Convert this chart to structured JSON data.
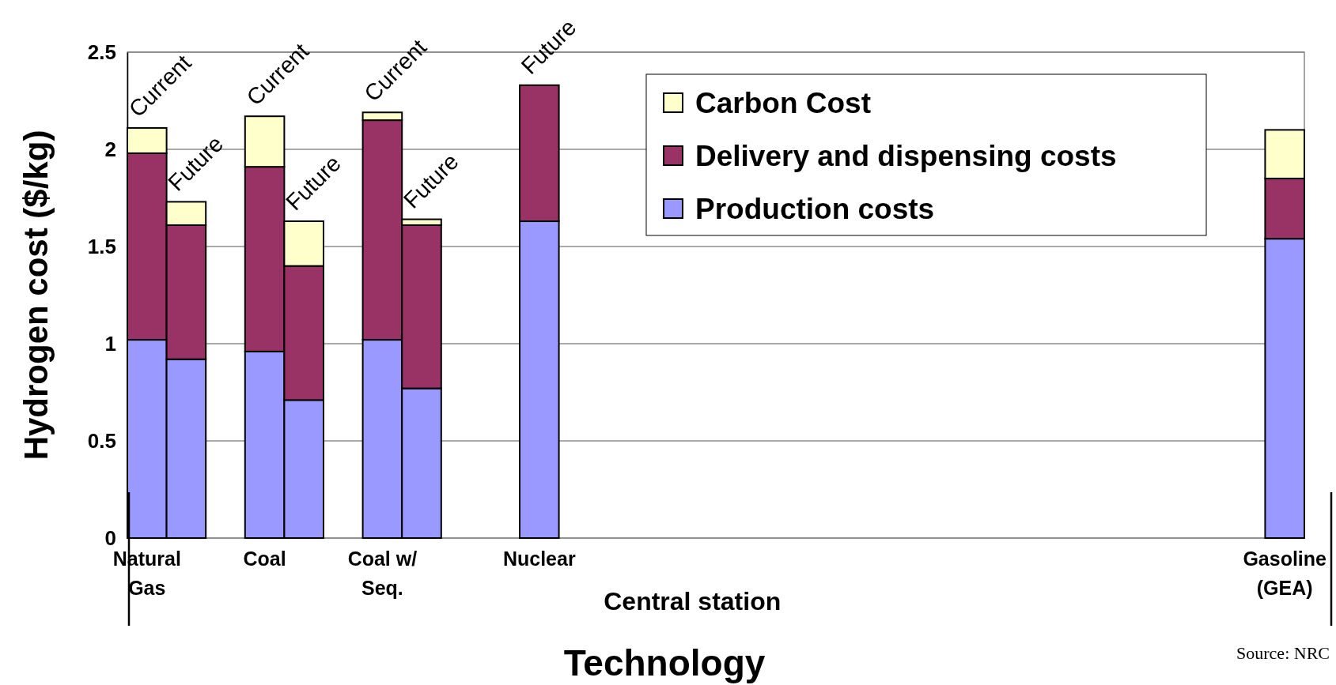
{
  "chart_data": {
    "type": "bar",
    "stacked": true,
    "categories": [
      "Natural Gas",
      null,
      null,
      "Coal",
      null,
      null,
      "Coal w/ Seq.",
      null,
      null,
      null,
      "Nuclear",
      null,
      null,
      null,
      null,
      null,
      null,
      null,
      null,
      null,
      null,
      null,
      null,
      null,
      null,
      null,
      null,
      null,
      null,
      "Gasoline (GEA)"
    ],
    "series": [
      {
        "name": "Production costs",
        "color": "#9999ff",
        "values": [
          1.02,
          0.92,
          null,
          0.96,
          0.71,
          null,
          1.02,
          0.77,
          null,
          null,
          1.63,
          null,
          null,
          null,
          null,
          null,
          null,
          null,
          null,
          null,
          null,
          null,
          null,
          null,
          null,
          null,
          null,
          null,
          null,
          1.54
        ]
      },
      {
        "name": "Delivery and dispensing costs",
        "color": "#993366",
        "values": [
          0.96,
          0.69,
          null,
          0.95,
          0.69,
          null,
          1.13,
          0.84,
          null,
          null,
          0.7,
          null,
          null,
          null,
          null,
          null,
          null,
          null,
          null,
          null,
          null,
          null,
          null,
          null,
          null,
          null,
          null,
          null,
          null,
          0.31
        ]
      },
      {
        "name": "Carbon Cost",
        "color": "#ffffcc",
        "values": [
          0.13,
          0.12,
          null,
          0.26,
          0.23,
          null,
          0.04,
          0.03,
          null,
          null,
          0,
          null,
          null,
          null,
          null,
          null,
          null,
          null,
          null,
          null,
          null,
          null,
          null,
          null,
          null,
          null,
          null,
          null,
          null,
          0.25
        ],
        "value_labels": [
          "Current",
          "Future",
          null,
          "Current",
          "Future",
          null,
          "Current",
          "Future",
          null,
          null,
          "Future",
          null,
          null,
          null,
          null,
          null,
          null,
          null,
          null,
          null,
          null,
          null,
          null,
          null,
          null,
          null,
          null,
          null,
          null,
          null
        ]
      }
    ],
    "xlabel": "Technology",
    "ylabel": "Hydrogen cost ($/kg)",
    "ylim": [
      0,
      2.5
    ],
    "yticks": [
      0,
      0.5,
      1,
      1.5,
      2,
      2.5
    ],
    "grid": "y",
    "legend": "top right",
    "annotations": [
      "Central station",
      "Source: NRC"
    ]
  }
}
